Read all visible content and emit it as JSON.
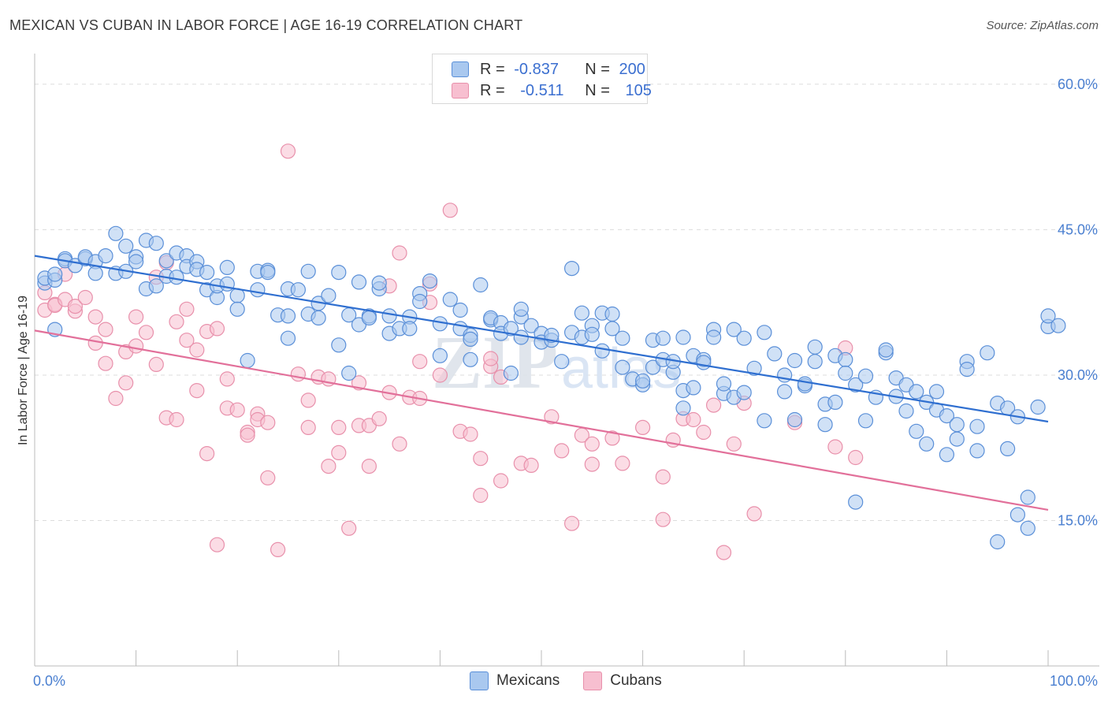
{
  "title": "MEXICAN VS CUBAN IN LABOR FORCE | AGE 16-19 CORRELATION CHART",
  "source": "Source: ZipAtlas.com",
  "colors": {
    "blue_fill": "#a9c8ef",
    "blue_stroke": "#5a8fd8",
    "blue_line": "#2f6fd0",
    "pink_fill": "#f7bfd0",
    "pink_stroke": "#e890ab",
    "pink_line": "#e2709a",
    "axis_text": "#4a7fd0",
    "grid": "#dcdcdc"
  },
  "legend": {
    "rows": [
      {
        "r_label": "R = ",
        "r_value": "-0.837",
        "n_label": "N = ",
        "n_value": "200"
      },
      {
        "r_label": "R = ",
        "r_value": "-0.511",
        "n_label": "N = ",
        "n_value": "105"
      }
    ]
  },
  "bottom_legend": {
    "mexicans": "Mexicans",
    "cubans": "Cubans"
  },
  "chart_data": {
    "type": "scatter",
    "title": "MEXICAN VS CUBAN IN LABOR FORCE | AGE 16-19 CORRELATION CHART",
    "xlabel": "",
    "ylabel": "In Labor Force | Age 16-19",
    "xlim": [
      0,
      100
    ],
    "ylim": [
      0,
      63
    ],
    "x_tick_labels": [
      "0.0%",
      "100.0%"
    ],
    "y_ticks": [
      15,
      30,
      45,
      60
    ],
    "y_tick_labels": [
      "15.0%",
      "30.0%",
      "45.0%",
      "60.0%"
    ],
    "grid": true,
    "legend_position": "top-center",
    "watermark": "ZIPatlas",
    "series": [
      {
        "name": "Mexicans",
        "r": -0.837,
        "n": 200,
        "trend": {
          "x": [
            0,
            100
          ],
          "y": [
            42.3,
            25.2
          ]
        },
        "points": [
          [
            1,
            39.5
          ],
          [
            1,
            40
          ],
          [
            2,
            39.8
          ],
          [
            2,
            34.7
          ],
          [
            2,
            40.4
          ],
          [
            3,
            42
          ],
          [
            3,
            41.8
          ],
          [
            4,
            41.3
          ],
          [
            5,
            42
          ],
          [
            5,
            42.2
          ],
          [
            6,
            41.7
          ],
          [
            6,
            40.5
          ],
          [
            7,
            42.3
          ],
          [
            8,
            44.6
          ],
          [
            8,
            40.5
          ],
          [
            9,
            43.3
          ],
          [
            9,
            40.7
          ],
          [
            10,
            42.2
          ],
          [
            10,
            41.7
          ],
          [
            11,
            38.9
          ],
          [
            11,
            43.9
          ],
          [
            12,
            43.6
          ],
          [
            12,
            39.2
          ],
          [
            13,
            40.2
          ],
          [
            13,
            41.8
          ],
          [
            14,
            40.1
          ],
          [
            14,
            42.6
          ],
          [
            15,
            42.3
          ],
          [
            15,
            41.2
          ],
          [
            16,
            41.7
          ],
          [
            16,
            40.9
          ],
          [
            17,
            40.6
          ],
          [
            17,
            38.8
          ],
          [
            18,
            38
          ],
          [
            18,
            39.2
          ],
          [
            19,
            41.1
          ],
          [
            19,
            39.4
          ],
          [
            20,
            38.2
          ],
          [
            20,
            36.8
          ],
          [
            21,
            31.5
          ],
          [
            22,
            38.8
          ],
          [
            22,
            40.7
          ],
          [
            23,
            40.8
          ],
          [
            23,
            40.6
          ],
          [
            24,
            36.2
          ],
          [
            25,
            38.9
          ],
          [
            25,
            36.1
          ],
          [
            25,
            33.8
          ],
          [
            26,
            38.8
          ],
          [
            27,
            40.7
          ],
          [
            27,
            36.3
          ],
          [
            28,
            35.9
          ],
          [
            28,
            37.4
          ],
          [
            29,
            38.2
          ],
          [
            30,
            40.6
          ],
          [
            30,
            33.1
          ],
          [
            31,
            36.2
          ],
          [
            31,
            30.2
          ],
          [
            32,
            35.2
          ],
          [
            32,
            39.6
          ],
          [
            33,
            36.1
          ],
          [
            33,
            35.9
          ],
          [
            34,
            38.9
          ],
          [
            34,
            39.5
          ],
          [
            35,
            36.1
          ],
          [
            35,
            34.3
          ],
          [
            36,
            34.8
          ],
          [
            37,
            36
          ],
          [
            37,
            34.8
          ],
          [
            38,
            38.4
          ],
          [
            38,
            37.6
          ],
          [
            39,
            39.7
          ],
          [
            40,
            32
          ],
          [
            40,
            35.3
          ],
          [
            41,
            37.8
          ],
          [
            42,
            36.7
          ],
          [
            42,
            34.8
          ],
          [
            43,
            34.1
          ],
          [
            43,
            33.7
          ],
          [
            43,
            31.6
          ],
          [
            44,
            39.3
          ],
          [
            45,
            35.7
          ],
          [
            45,
            35.9
          ],
          [
            46,
            35.4
          ],
          [
            46,
            34.3
          ],
          [
            47,
            34.8
          ],
          [
            47,
            30.2
          ],
          [
            48,
            36
          ],
          [
            48,
            33.9
          ],
          [
            48,
            36.8
          ],
          [
            49,
            35.1
          ],
          [
            50,
            34.3
          ],
          [
            50,
            33.4
          ],
          [
            51,
            33.6
          ],
          [
            51,
            34.1
          ],
          [
            52,
            31.4
          ],
          [
            53,
            34.4
          ],
          [
            53,
            41
          ],
          [
            54,
            36.4
          ],
          [
            54,
            33.9
          ],
          [
            55,
            35.1
          ],
          [
            55,
            34.2
          ],
          [
            56,
            36.4
          ],
          [
            56,
            32.5
          ],
          [
            57,
            36.3
          ],
          [
            57,
            34.8
          ],
          [
            58,
            33.8
          ],
          [
            58,
            30.8
          ],
          [
            59,
            29.6
          ],
          [
            60,
            29
          ],
          [
            60,
            29.4
          ],
          [
            61,
            30.8
          ],
          [
            61,
            33.6
          ],
          [
            62,
            33.8
          ],
          [
            62,
            31.6
          ],
          [
            63,
            30.3
          ],
          [
            63,
            31.4
          ],
          [
            64,
            26.6
          ],
          [
            64,
            33.9
          ],
          [
            64,
            28.4
          ],
          [
            65,
            28.7
          ],
          [
            65,
            32
          ],
          [
            66,
            31.6
          ],
          [
            66,
            31.3
          ],
          [
            67,
            34.7
          ],
          [
            67,
            33.9
          ],
          [
            68,
            28.1
          ],
          [
            68,
            29.1
          ],
          [
            69,
            34.7
          ],
          [
            69,
            27.7
          ],
          [
            70,
            28.2
          ],
          [
            70,
            33.8
          ],
          [
            71,
            30.7
          ],
          [
            72,
            34.4
          ],
          [
            72,
            25.3
          ],
          [
            73,
            32.2
          ],
          [
            74,
            28.3
          ],
          [
            74,
            30
          ],
          [
            75,
            25.4
          ],
          [
            75,
            31.5
          ],
          [
            76,
            28.9
          ],
          [
            76,
            29.1
          ],
          [
            77,
            32.9
          ],
          [
            77,
            31.4
          ],
          [
            78,
            27
          ],
          [
            78,
            24.9
          ],
          [
            79,
            27.2
          ],
          [
            79,
            32
          ],
          [
            80,
            31.6
          ],
          [
            80,
            30.2
          ],
          [
            81,
            16.9
          ],
          [
            81,
            29
          ],
          [
            82,
            25.3
          ],
          [
            82,
            29.9
          ],
          [
            83,
            27.7
          ],
          [
            84,
            32.3
          ],
          [
            84,
            32.6
          ],
          [
            85,
            27.8
          ],
          [
            85,
            29.7
          ],
          [
            86,
            29
          ],
          [
            86,
            26.3
          ],
          [
            87,
            28.3
          ],
          [
            87,
            24.2
          ],
          [
            88,
            22.9
          ],
          [
            88,
            27.2
          ],
          [
            89,
            28.3
          ],
          [
            89,
            26.4
          ],
          [
            90,
            25.8
          ],
          [
            90,
            21.8
          ],
          [
            91,
            24.9
          ],
          [
            91,
            23.4
          ],
          [
            92,
            31.4
          ],
          [
            92,
            30.6
          ],
          [
            93,
            22.2
          ],
          [
            93,
            24.7
          ],
          [
            94,
            32.3
          ],
          [
            95,
            27.1
          ],
          [
            95,
            12.8
          ],
          [
            96,
            22.4
          ],
          [
            96,
            26.6
          ],
          [
            97,
            25.7
          ],
          [
            97,
            15.6
          ],
          [
            98,
            14.2
          ],
          [
            98,
            17.4
          ],
          [
            99,
            26.7
          ],
          [
            100,
            35
          ],
          [
            100,
            36.1
          ],
          [
            101,
            35.1
          ]
        ]
      },
      {
        "name": "Cubans",
        "r": -0.511,
        "n": 105,
        "trend": {
          "x": [
            0,
            100
          ],
          "y": [
            34.6,
            16.1
          ]
        },
        "points": [
          [
            1,
            38.5
          ],
          [
            1,
            36.7
          ],
          [
            2,
            37.3
          ],
          [
            2,
            37.2
          ],
          [
            3,
            37.8
          ],
          [
            3,
            40.4
          ],
          [
            4,
            36.6
          ],
          [
            4,
            37.1
          ],
          [
            5,
            38
          ],
          [
            6,
            36
          ],
          [
            6,
            33.3
          ],
          [
            7,
            34.7
          ],
          [
            7,
            31.2
          ],
          [
            8,
            27.6
          ],
          [
            9,
            32.4
          ],
          [
            9,
            29.2
          ],
          [
            10,
            33
          ],
          [
            10,
            36
          ],
          [
            11,
            34.4
          ],
          [
            12,
            40.1
          ],
          [
            12,
            31.1
          ],
          [
            13,
            41.6
          ],
          [
            13,
            25.6
          ],
          [
            14,
            35.5
          ],
          [
            14,
            25.4
          ],
          [
            15,
            33.6
          ],
          [
            15,
            36.8
          ],
          [
            16,
            32.6
          ],
          [
            16,
            28.4
          ],
          [
            17,
            21.9
          ],
          [
            17,
            34.5
          ],
          [
            18,
            34.8
          ],
          [
            18,
            12.5
          ],
          [
            19,
            26.6
          ],
          [
            19,
            29.6
          ],
          [
            20,
            26.4
          ],
          [
            21,
            24.1
          ],
          [
            21,
            23.8
          ],
          [
            22,
            26
          ],
          [
            22,
            25.4
          ],
          [
            23,
            25.1
          ],
          [
            23,
            19.4
          ],
          [
            24,
            12
          ],
          [
            25,
            53.1
          ],
          [
            26,
            30.1
          ],
          [
            27,
            24.6
          ],
          [
            27,
            27.4
          ],
          [
            28,
            29.8
          ],
          [
            29,
            29.6
          ],
          [
            29,
            20.6
          ],
          [
            30,
            24.6
          ],
          [
            30,
            22
          ],
          [
            31,
            14.2
          ],
          [
            32,
            24.8
          ],
          [
            32,
            29.2
          ],
          [
            33,
            20.6
          ],
          [
            33,
            24.8
          ],
          [
            34,
            25.5
          ],
          [
            35,
            39.2
          ],
          [
            35,
            28.2
          ],
          [
            36,
            42.6
          ],
          [
            36,
            22.9
          ],
          [
            37,
            27.7
          ],
          [
            38,
            27.6
          ],
          [
            38,
            31.4
          ],
          [
            39,
            37.5
          ],
          [
            39,
            39.4
          ],
          [
            40,
            30
          ],
          [
            41,
            47
          ],
          [
            42,
            24.2
          ],
          [
            43,
            23.9
          ],
          [
            44,
            17.6
          ],
          [
            44,
            21.4
          ],
          [
            45,
            30.9
          ],
          [
            45,
            31.7
          ],
          [
            46,
            19.1
          ],
          [
            46,
            29.8
          ],
          [
            48,
            20.9
          ],
          [
            49,
            20.7
          ],
          [
            51,
            25.7
          ],
          [
            52,
            22.2
          ],
          [
            53,
            14.7
          ],
          [
            54,
            23.8
          ],
          [
            55,
            20.8
          ],
          [
            55,
            22.9
          ],
          [
            57,
            23.5
          ],
          [
            58,
            20.9
          ],
          [
            60,
            24.6
          ],
          [
            62,
            19.5
          ],
          [
            62,
            15.1
          ],
          [
            63,
            23.3
          ],
          [
            64,
            25.5
          ],
          [
            65,
            25.4
          ],
          [
            66,
            24.1
          ],
          [
            67,
            26.9
          ],
          [
            68,
            11.7
          ],
          [
            69,
            22.9
          ],
          [
            70,
            27.1
          ],
          [
            71,
            15.7
          ],
          [
            75,
            25.1
          ],
          [
            79,
            22.6
          ],
          [
            80,
            32.8
          ],
          [
            81,
            21.5
          ]
        ]
      }
    ]
  }
}
